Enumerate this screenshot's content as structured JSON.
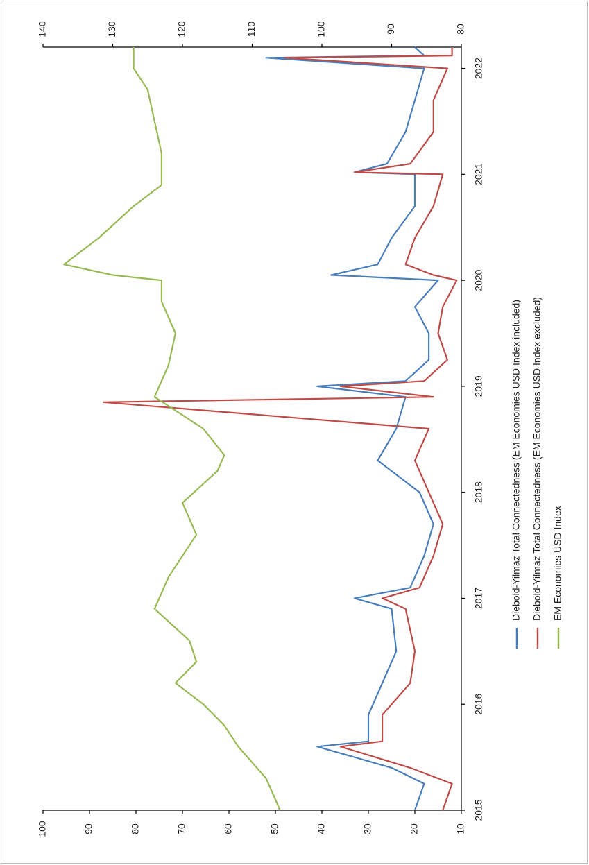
{
  "chart_data": {
    "type": "line",
    "xlim": [
      2015,
      2022.2
    ],
    "xticks": [
      2015,
      2016,
      2017,
      2018,
      2019,
      2020,
      2021,
      2022
    ],
    "ylim": [
      10,
      100
    ],
    "yticks": [
      10,
      20,
      30,
      40,
      50,
      60,
      70,
      80,
      90,
      100
    ],
    "y2lim": [
      80,
      140
    ],
    "y2ticks": [
      80,
      90,
      100,
      110,
      120,
      130,
      140
    ],
    "series": [
      {
        "name": "Diebold-Yilmaz Total Connectedness (EM Economies USD Index included)",
        "color": "#4a7ebb",
        "x": [
          2015.0,
          2015.25,
          2015.4,
          2015.6,
          2015.65,
          2015.9,
          2016.2,
          2016.5,
          2016.9,
          2017.0,
          2017.1,
          2017.4,
          2017.7,
          2018.0,
          2018.3,
          2018.6,
          2018.9,
          2019.0,
          2019.05,
          2019.25,
          2019.5,
          2019.75,
          2020.0,
          2020.05,
          2020.15,
          2020.4,
          2020.7,
          2021.0,
          2021.02,
          2021.1,
          2021.4,
          2021.7,
          2022.0,
          2022.1,
          2022.12,
          2022.2
        ],
        "values": [
          20,
          18,
          25,
          41,
          30,
          30,
          27,
          24,
          25,
          33,
          21,
          18,
          16,
          19,
          28,
          24,
          22,
          41,
          22,
          17,
          17,
          20,
          15,
          38,
          28,
          25,
          20,
          20,
          33,
          26,
          22,
          20,
          18,
          52,
          18,
          20
        ]
      },
      {
        "name": "Diebold-Yilmaz Total Connectedness (EM Economies USD Index excluded)",
        "color": "#be4b48",
        "x": [
          2015.0,
          2015.25,
          2015.4,
          2015.6,
          2015.65,
          2015.9,
          2016.2,
          2016.5,
          2016.9,
          2017.0,
          2017.1,
          2017.4,
          2017.7,
          2018.0,
          2018.3,
          2018.6,
          2018.85,
          2018.9,
          2019.0,
          2019.05,
          2019.25,
          2019.5,
          2019.75,
          2020.0,
          2020.05,
          2020.15,
          2020.4,
          2020.7,
          2021.0,
          2021.02,
          2021.1,
          2021.4,
          2021.7,
          2022.0,
          2022.1,
          2022.12,
          2022.2
        ],
        "values": [
          14,
          12,
          21,
          36,
          27,
          27,
          21,
          20,
          22,
          27,
          19,
          16,
          14,
          17,
          20,
          17,
          87,
          16,
          36,
          18,
          13,
          15,
          14,
          11,
          16,
          22,
          20,
          16,
          14,
          33,
          21,
          16,
          16,
          13,
          48,
          12,
          12
        ]
      },
      {
        "name": "EM Economies USD Index",
        "color": "#98b954",
        "axis": "y2",
        "x": [
          2015.0,
          2015.3,
          2015.6,
          2015.8,
          2016.0,
          2016.2,
          2016.4,
          2016.6,
          2016.9,
          2017.2,
          2017.6,
          2017.9,
          2018.2,
          2018.35,
          2018.6,
          2018.9,
          2019.2,
          2019.5,
          2019.8,
          2020.0,
          2020.05,
          2020.15,
          2020.4,
          2020.7,
          2020.9,
          2021.2,
          2021.5,
          2021.8,
          2022.0,
          2022.2
        ],
        "values": [
          106,
          108,
          112,
          114,
          117,
          121,
          118,
          119,
          124,
          122,
          118,
          120,
          115,
          114,
          117,
          124,
          122,
          121,
          123,
          123,
          130,
          137,
          132,
          127,
          123,
          123,
          124,
          125,
          127,
          127
        ]
      }
    ]
  }
}
